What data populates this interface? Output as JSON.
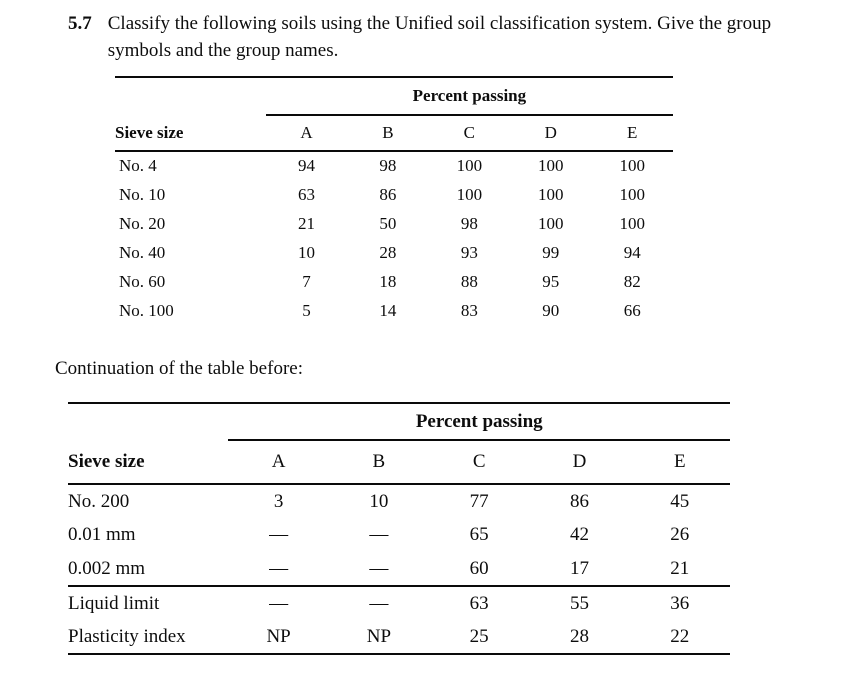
{
  "problem": {
    "number": "5.7",
    "text": "Classify the following soils using the Unified soil classification system. Give the group symbols and the group names."
  },
  "continuation_text": "Continuation of the table before:",
  "table1": {
    "caption": "Percent passing",
    "col_headers": [
      "Sieve size",
      "A",
      "B",
      "C",
      "D",
      "E"
    ],
    "rows": [
      {
        "label": "No. 4",
        "values": [
          "94",
          "98",
          "100",
          "100",
          "100"
        ]
      },
      {
        "label": "No. 10",
        "values": [
          "63",
          "86",
          "100",
          "100",
          "100"
        ]
      },
      {
        "label": "No. 20",
        "values": [
          "21",
          "50",
          "98",
          "100",
          "100"
        ]
      },
      {
        "label": "No. 40",
        "values": [
          "10",
          "28",
          "93",
          "99",
          "94"
        ]
      },
      {
        "label": "No. 60",
        "values": [
          "7",
          "18",
          "88",
          "95",
          "82"
        ]
      },
      {
        "label": "No. 100",
        "values": [
          "5",
          "14",
          "83",
          "90",
          "66"
        ]
      }
    ]
  },
  "table2": {
    "caption": "Percent passing",
    "col_headers": [
      "Sieve size",
      "A",
      "B",
      "C",
      "D",
      "E"
    ],
    "rows": [
      {
        "label": "No. 200",
        "values": [
          "3",
          "10",
          "77",
          "86",
          "45"
        ]
      },
      {
        "label": "0.01 mm",
        "values": [
          "—",
          "—",
          "65",
          "42",
          "26"
        ]
      },
      {
        "label": "0.002 mm",
        "values": [
          "—",
          "—",
          "60",
          "17",
          "21"
        ]
      },
      {
        "label": "Liquid limit",
        "values": [
          "—",
          "—",
          "63",
          "55",
          "36"
        ]
      },
      {
        "label": "Plasticity index",
        "values": [
          "NP",
          "NP",
          "25",
          "28",
          "22"
        ]
      }
    ]
  }
}
